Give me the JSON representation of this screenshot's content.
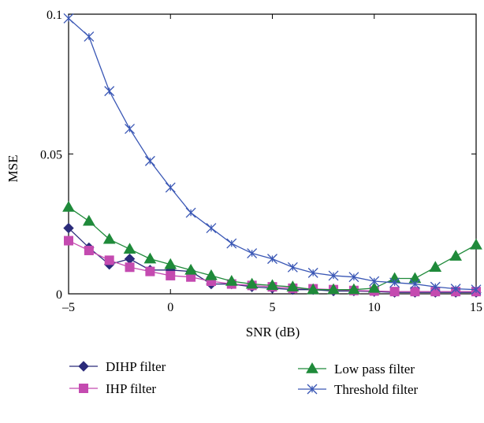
{
  "chart_data": {
    "type": "line",
    "title": "",
    "xlabel": "SNR (dB)",
    "ylabel": "MSE",
    "xlim": [
      -5,
      15
    ],
    "ylim": [
      0,
      0.1
    ],
    "x_ticks": [
      -5,
      0,
      5,
      10,
      15
    ],
    "x_tick_labels": [
      "–5",
      "0",
      "5",
      "10",
      "15"
    ],
    "y_ticks": [
      0,
      0.05,
      0.1
    ],
    "y_tick_labels": [
      "0",
      "0.05",
      "0.1"
    ],
    "grid": false,
    "legend_position": "bottom",
    "x": [
      -5,
      -4,
      -3,
      -2,
      -1,
      0,
      1,
      2,
      3,
      4,
      5,
      6,
      7,
      8,
      9,
      10,
      11,
      12,
      13,
      14,
      15
    ],
    "series": [
      {
        "name": "DIHP filter",
        "marker": "diamond",
        "color": "#2b2b7a",
        "values": [
          0.0235,
          0.0165,
          0.0105,
          0.0125,
          0.0085,
          0.0085,
          0.008,
          0.0035,
          0.0035,
          0.0025,
          0.002,
          0.0015,
          0.0015,
          0.001,
          0.001,
          0.0008,
          0.0005,
          0.0005,
          0.0005,
          0.0005,
          0.0005
        ]
      },
      {
        "name": "IHP filter",
        "marker": "square",
        "color": "#c44ab0",
        "values": [
          0.019,
          0.0155,
          0.012,
          0.0095,
          0.008,
          0.0065,
          0.006,
          0.0045,
          0.0035,
          0.003,
          0.0025,
          0.002,
          0.0018,
          0.0015,
          0.0012,
          0.001,
          0.0008,
          0.0008,
          0.0008,
          0.0008,
          0.0008
        ]
      },
      {
        "name": "Low pass filter",
        "marker": "triangle",
        "color": "#1f8a3a",
        "values": [
          0.031,
          0.026,
          0.0195,
          0.016,
          0.0125,
          0.0105,
          0.0085,
          0.0065,
          0.0045,
          0.0035,
          0.003,
          0.0025,
          0.0015,
          0.0015,
          0.0015,
          0.002,
          0.0055,
          0.0055,
          0.0095,
          0.0135,
          0.0175
        ]
      },
      {
        "name": "Threshold filter",
        "marker": "asterisk",
        "color": "#3a57b5",
        "values": [
          0.0985,
          0.092,
          0.0725,
          0.059,
          0.0475,
          0.038,
          0.029,
          0.0235,
          0.018,
          0.0145,
          0.0125,
          0.0095,
          0.0075,
          0.0065,
          0.006,
          0.0045,
          0.004,
          0.0035,
          0.0025,
          0.0018,
          0.0015
        ]
      }
    ],
    "legend": [
      {
        "label": "DIHP filter",
        "series": 0
      },
      {
        "label": "IHP filter",
        "series": 1
      },
      {
        "label": "Low pass filter",
        "series": 2
      },
      {
        "label": "Threshold filter",
        "series": 3
      }
    ]
  }
}
